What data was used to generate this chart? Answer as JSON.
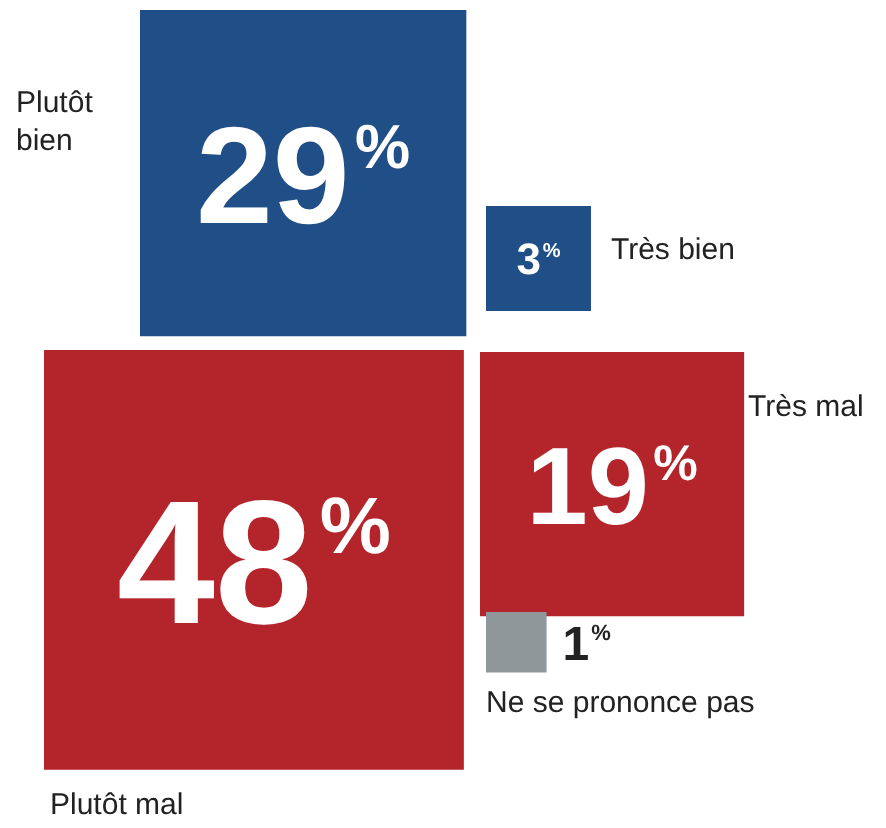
{
  "chart_data": {
    "type": "other",
    "categories": [
      "Plutôt bien",
      "Très bien",
      "Plutôt mal",
      "Très mal",
      "Ne se prononce pas"
    ],
    "values": [
      29,
      3,
      48,
      19,
      1
    ],
    "value_labels": [
      "29%",
      "3%",
      "48%",
      "19%",
      "1%"
    ],
    "colors": [
      "#1f4f86",
      "#1f4f86",
      "#b3242b",
      "#b3242b",
      "#8f979b"
    ]
  }
}
